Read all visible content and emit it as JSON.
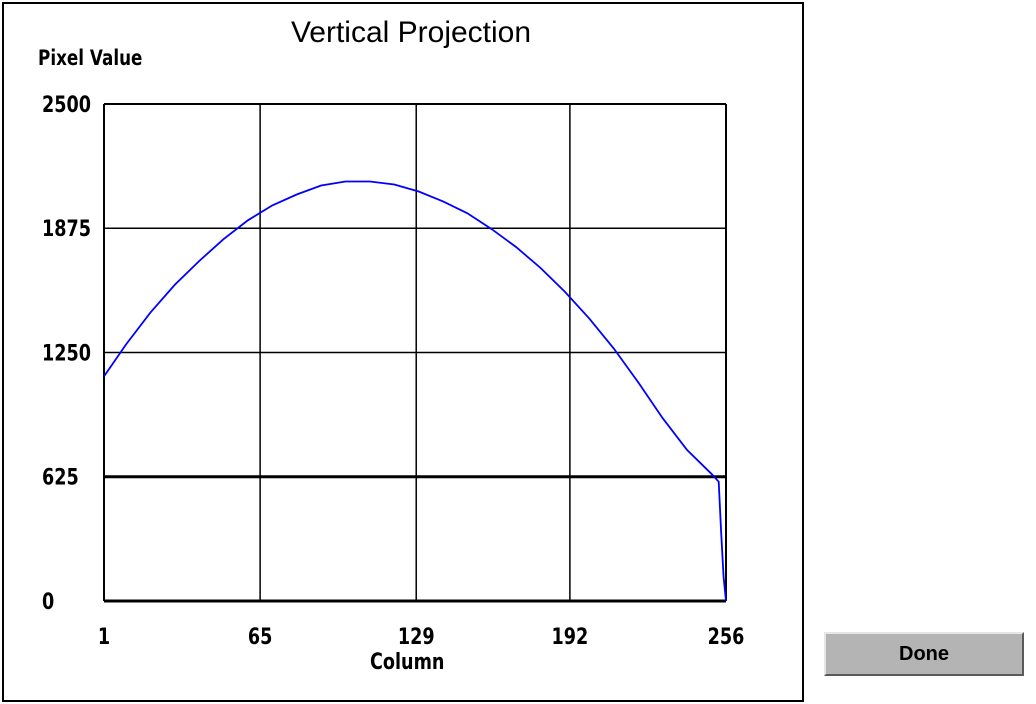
{
  "chart_data": {
    "type": "line",
    "title": "Vertical Projection",
    "xlabel": "Column",
    "ylabel": "Pixel Value",
    "xlim": [
      1,
      256
    ],
    "ylim": [
      0,
      2500
    ],
    "x_ticks": [
      1,
      65,
      129,
      192,
      256
    ],
    "y_ticks": [
      0,
      625,
      1250,
      1875,
      2500
    ],
    "grid": true,
    "line_color": "#0000ff",
    "series": [
      {
        "values_x": [
          1,
          10,
          20,
          30,
          40,
          50,
          60,
          70,
          80,
          90,
          100,
          110,
          120,
          130,
          140,
          150,
          160,
          170,
          180,
          190,
          200,
          210,
          220,
          230,
          240,
          250,
          253,
          254,
          255,
          256
        ],
        "values_y": [
          1130,
          1290,
          1450,
          1590,
          1710,
          1820,
          1915,
          1990,
          2045,
          2090,
          2110,
          2110,
          2095,
          2060,
          2010,
          1950,
          1870,
          1780,
          1675,
          1555,
          1420,
          1270,
          1100,
          920,
          760,
          640,
          600,
          350,
          120,
          0
        ]
      }
    ]
  },
  "buttons": {
    "done_label": "Done"
  }
}
